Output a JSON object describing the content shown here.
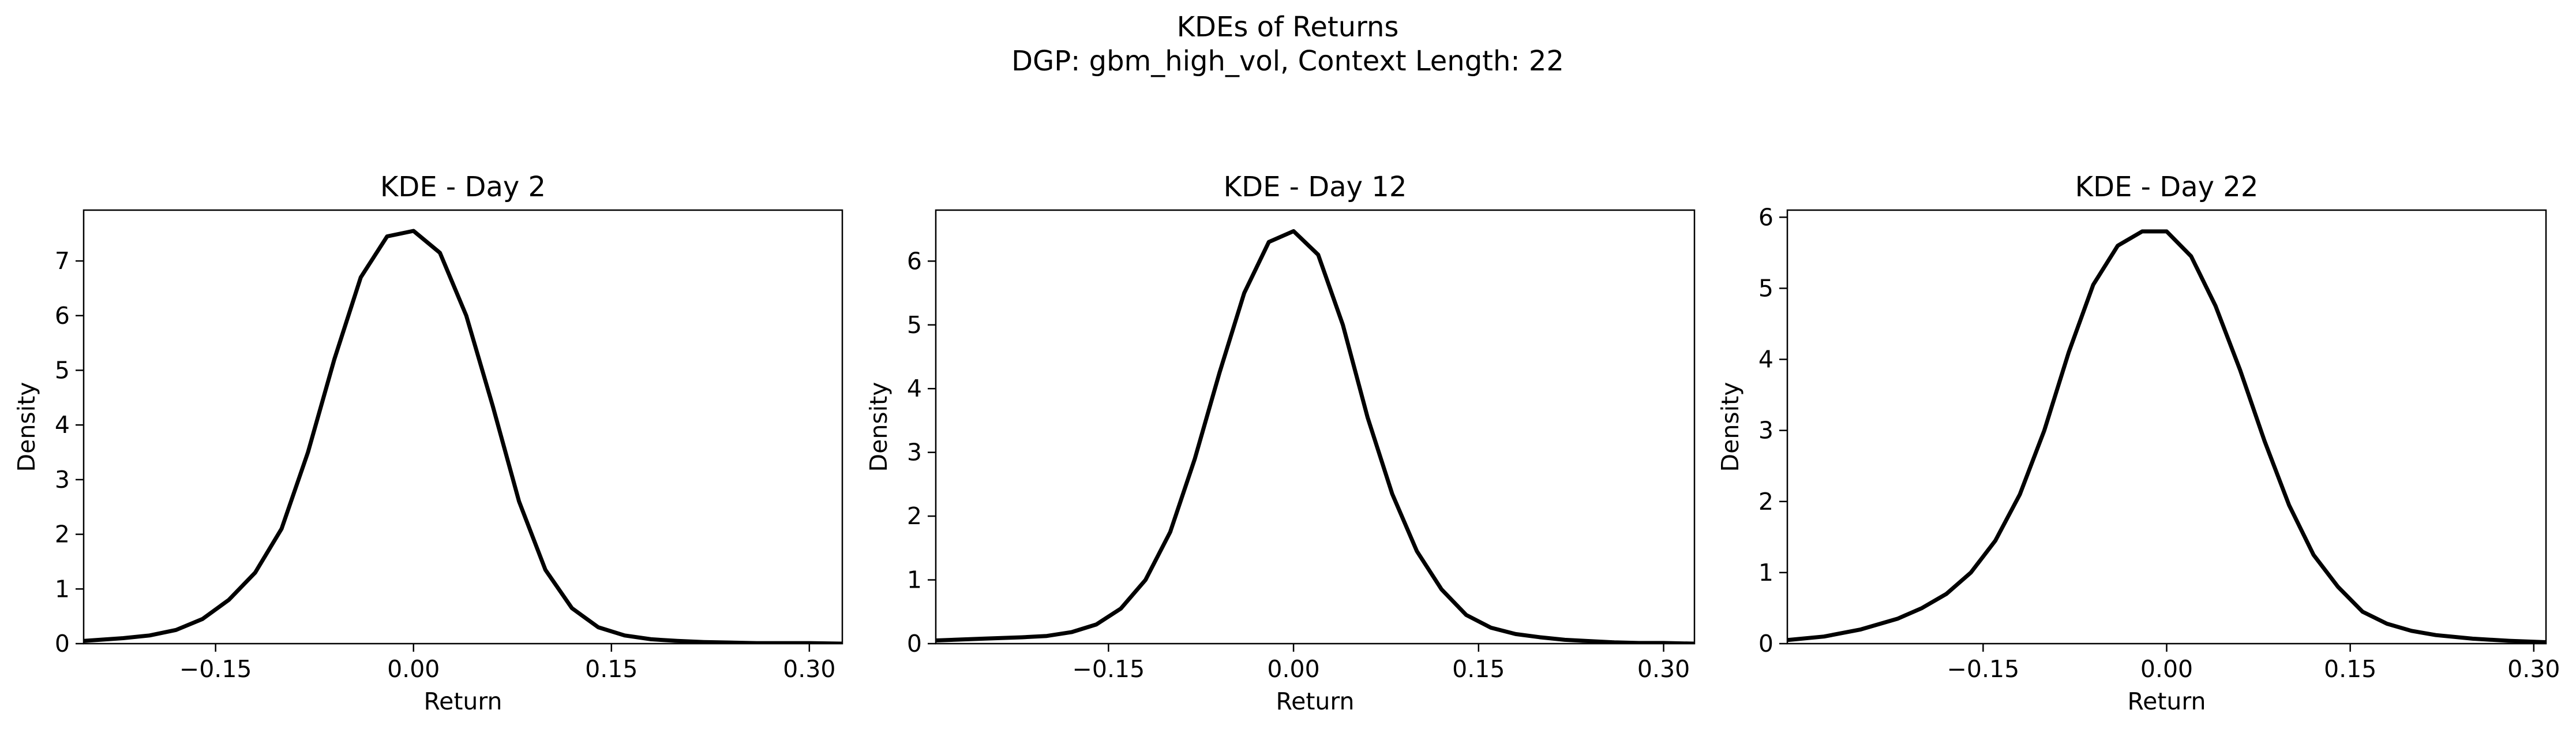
{
  "figure": {
    "title_line1": "KDEs of Returns",
    "title_line2": "DGP: gbm_high_vol, Context Length: 22",
    "line_color": "#000000"
  },
  "chart_data": [
    {
      "type": "line",
      "title": "KDE - Day 2",
      "xlabel": "Return",
      "ylabel": "Density",
      "xlim": [
        -0.25,
        0.325
      ],
      "ylim": [
        0,
        7.93
      ],
      "xticks": [
        -0.15,
        0.0,
        0.15,
        0.3
      ],
      "xtick_labels": [
        "−0.15",
        "0.00",
        "0.15",
        "0.30"
      ],
      "yticks": [
        0,
        1,
        2,
        3,
        4,
        5,
        6,
        7
      ],
      "ytick_labels": [
        "0",
        "1",
        "2",
        "3",
        "4",
        "5",
        "6",
        "7"
      ],
      "grid": false,
      "series": [
        {
          "x": [
            -0.25,
            -0.22,
            -0.2,
            -0.18,
            -0.16,
            -0.14,
            -0.12,
            -0.1,
            -0.08,
            -0.06,
            -0.04,
            -0.02,
            0.0,
            0.02,
            0.04,
            0.06,
            0.08,
            0.1,
            0.12,
            0.14,
            0.16,
            0.18,
            0.2,
            0.22,
            0.24,
            0.26,
            0.28,
            0.3,
            0.325
          ],
          "y": [
            0.05,
            0.1,
            0.15,
            0.25,
            0.45,
            0.8,
            1.3,
            2.1,
            3.5,
            5.2,
            6.7,
            7.45,
            7.55,
            7.15,
            6.0,
            4.35,
            2.6,
            1.35,
            0.65,
            0.3,
            0.15,
            0.08,
            0.05,
            0.03,
            0.02,
            0.01,
            0.01,
            0.01,
            0.0
          ]
        }
      ]
    },
    {
      "type": "line",
      "title": "KDE - Day 12",
      "xlabel": "Return",
      "ylabel": "Density",
      "xlim": [
        -0.29,
        0.325
      ],
      "ylim": [
        0,
        6.8
      ],
      "xticks": [
        -0.15,
        0.0,
        0.15,
        0.3
      ],
      "xtick_labels": [
        "−0.15",
        "0.00",
        "0.15",
        "0.30"
      ],
      "yticks": [
        0,
        1,
        2,
        3,
        4,
        5,
        6
      ],
      "ytick_labels": [
        "0",
        "1",
        "2",
        "3",
        "4",
        "5",
        "6"
      ],
      "grid": false,
      "series": [
        {
          "x": [
            -0.29,
            -0.25,
            -0.22,
            -0.2,
            -0.18,
            -0.16,
            -0.14,
            -0.12,
            -0.1,
            -0.08,
            -0.06,
            -0.04,
            -0.02,
            0.0,
            0.02,
            0.04,
            0.06,
            0.08,
            0.1,
            0.12,
            0.14,
            0.16,
            0.18,
            0.2,
            0.22,
            0.24,
            0.26,
            0.28,
            0.3,
            0.325
          ],
          "y": [
            0.05,
            0.08,
            0.1,
            0.12,
            0.18,
            0.3,
            0.55,
            1.0,
            1.75,
            2.9,
            4.25,
            5.5,
            6.3,
            6.47,
            6.1,
            5.0,
            3.55,
            2.35,
            1.45,
            0.85,
            0.45,
            0.25,
            0.15,
            0.1,
            0.06,
            0.04,
            0.02,
            0.01,
            0.01,
            0.0
          ]
        }
      ]
    },
    {
      "type": "line",
      "title": "KDE - Day 22",
      "xlabel": "Return",
      "ylabel": "Density",
      "xlim": [
        -0.31,
        0.31
      ],
      "ylim": [
        0,
        6.1
      ],
      "xticks": [
        -0.15,
        0.0,
        0.15,
        0.3
      ],
      "xtick_labels": [
        "−0.15",
        "0.00",
        "0.15",
        "0.30"
      ],
      "yticks": [
        0,
        1,
        2,
        3,
        4,
        5,
        6
      ],
      "ytick_labels": [
        "0",
        "1",
        "2",
        "3",
        "4",
        "5",
        "6"
      ],
      "grid": false,
      "series": [
        {
          "x": [
            -0.31,
            -0.28,
            -0.25,
            -0.22,
            -0.2,
            -0.18,
            -0.16,
            -0.14,
            -0.12,
            -0.1,
            -0.08,
            -0.06,
            -0.04,
            -0.02,
            0.0,
            0.02,
            0.04,
            0.06,
            0.08,
            0.1,
            0.12,
            0.14,
            0.16,
            0.18,
            0.2,
            0.22,
            0.25,
            0.28,
            0.31
          ],
          "y": [
            0.05,
            0.1,
            0.2,
            0.35,
            0.5,
            0.7,
            1.0,
            1.45,
            2.1,
            3.0,
            4.1,
            5.05,
            5.6,
            5.8,
            5.8,
            5.45,
            4.75,
            3.85,
            2.85,
            1.95,
            1.25,
            0.8,
            0.45,
            0.28,
            0.18,
            0.12,
            0.07,
            0.04,
            0.02
          ]
        }
      ]
    }
  ]
}
